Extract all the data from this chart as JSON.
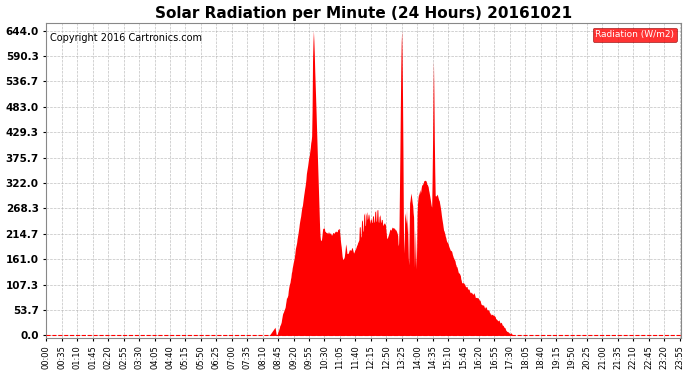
{
  "title": "Solar Radiation per Minute (24 Hours) 20161021",
  "copyright": "Copyright 2016 Cartronics.com",
  "legend_label": "Radiation (W/m2)",
  "yticks": [
    0.0,
    53.7,
    107.3,
    161.0,
    214.7,
    268.3,
    322.0,
    375.7,
    429.3,
    483.0,
    536.7,
    590.3,
    644.0
  ],
  "ymax": 660,
  "ymin": -5,
  "fill_color": "#ff0000",
  "line_color": "#ff0000",
  "bg_color": "#ffffff",
  "grid_color": "#b0b0b0",
  "dashed_line_color": "#ff0000",
  "title_fontsize": 11,
  "copyright_fontsize": 7,
  "xtick_fontsize": 6,
  "ytick_fontsize": 7.5,
  "tick_interval_minutes": 35
}
